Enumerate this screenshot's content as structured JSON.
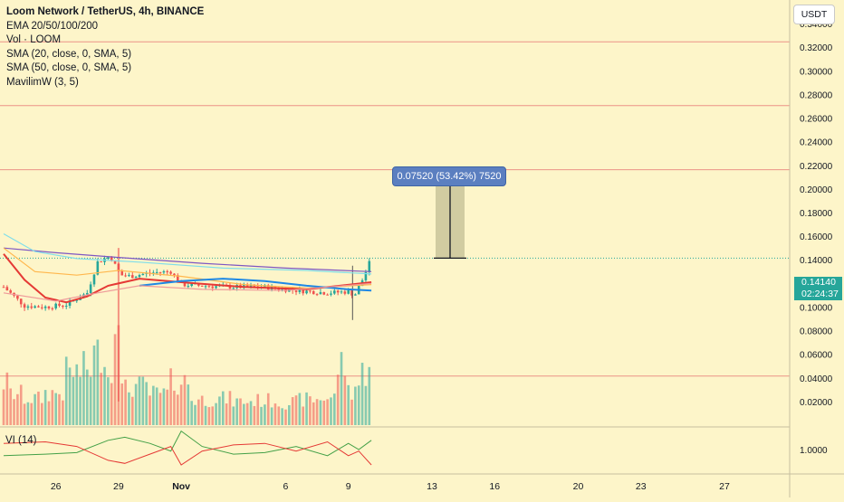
{
  "legend": {
    "title": "Loom Network / TetherUS, 4h, BINANCE",
    "lines": [
      "EMA 20/50/100/200",
      "Vol · LOOM",
      "SMA (20, close, 0, SMA, 5)",
      "SMA (50, close, 0, SMA, 5)",
      "MavilimW (3, 5)"
    ],
    "vi_label": "VI (14)"
  },
  "toolbar": {
    "currency": "USDT"
  },
  "price_tag": {
    "price": "0.14140",
    "countdown": "02:24:37"
  },
  "measure": {
    "label": "0.07520 (53.42%) 7520"
  },
  "colors": {
    "background": "#fdf5c9",
    "up": "#26a69a",
    "down": "#ef5350",
    "hline": "#e57373",
    "measure_fill": "#c9c49a",
    "label_bg": "#5b7fc0"
  },
  "chart_data": [
    {
      "type": "line",
      "title": "Loom Network / TetherUS, 4h, BINANCE",
      "y_ticks": [
        "0.34000",
        "0.32000",
        "0.30000",
        "0.28000",
        "0.26000",
        "0.24000",
        "0.22000",
        "0.20000",
        "0.18000",
        "0.16000",
        "0.14000",
        "0.12000",
        "0.10000",
        "0.08000",
        "0.06000",
        "0.04000",
        "0.02000"
      ],
      "ylim": [
        0.0,
        0.36
      ],
      "x_ticks": [
        "26",
        "29",
        "Nov",
        "6",
        "9",
        "13",
        "16",
        "20",
        "23",
        "27"
      ],
      "x_tick_days": [
        26,
        29,
        32,
        37,
        40,
        44,
        47,
        51,
        54,
        58
      ],
      "xlim": [
        23.5,
        60.6
      ],
      "horizontal_lines": [
        0.3246,
        0.2706,
        0.2163,
        0.0416
      ],
      "last_price": 0.1414,
      "measure": {
        "from": 0.1414,
        "to": 0.2166,
        "change": 0.0752,
        "percent": 53.42,
        "bars": 7520,
        "start_day": 42.9,
        "end_day": 43.5
      },
      "price_series": [
        {
          "day": 23.5,
          "value": 0.117
        },
        {
          "day": 24.5,
          "value": 0.101
        },
        {
          "day": 25.5,
          "value": 0.1
        },
        {
          "day": 26.5,
          "value": 0.102
        },
        {
          "day": 27.5,
          "value": 0.112
        },
        {
          "day": 28.0,
          "value": 0.138
        },
        {
          "day": 28.6,
          "value": 0.143
        },
        {
          "day": 29.1,
          "value": 0.127
        },
        {
          "day": 29.6,
          "value": 0.126
        },
        {
          "day": 30.5,
          "value": 0.129
        },
        {
          "day": 31.5,
          "value": 0.13
        },
        {
          "day": 32.0,
          "value": 0.119
        },
        {
          "day": 33.0,
          "value": 0.118
        },
        {
          "day": 34.5,
          "value": 0.117
        },
        {
          "day": 36.0,
          "value": 0.117
        },
        {
          "day": 37.5,
          "value": 0.114
        },
        {
          "day": 39.0,
          "value": 0.112
        },
        {
          "day": 40.0,
          "value": 0.113
        },
        {
          "day": 40.3,
          "value": 0.11
        },
        {
          "day": 40.7,
          "value": 0.124
        },
        {
          "day": 41.1,
          "value": 0.1414
        }
      ],
      "volume_series": [
        {
          "day": 23.6,
          "value": 0.045
        },
        {
          "day": 24.0,
          "value": 0.033
        },
        {
          "day": 25.0,
          "value": 0.028
        },
        {
          "day": 26.0,
          "value": 0.034
        },
        {
          "day": 27.0,
          "value": 0.056
        },
        {
          "day": 27.4,
          "value": 0.06
        },
        {
          "day": 28.0,
          "value": 0.075
        },
        {
          "day": 28.3,
          "value": 0.079
        },
        {
          "day": 28.6,
          "value": 0.051
        },
        {
          "day": 29.0,
          "value": 0.14
        },
        {
          "day": 29.3,
          "value": 0.038
        },
        {
          "day": 30.0,
          "value": 0.041
        },
        {
          "day": 31.0,
          "value": 0.033
        },
        {
          "day": 32.0,
          "value": 0.046
        },
        {
          "day": 33.0,
          "value": 0.027
        },
        {
          "day": 34.0,
          "value": 0.028
        },
        {
          "day": 35.0,
          "value": 0.025
        },
        {
          "day": 36.0,
          "value": 0.026
        },
        {
          "day": 37.0,
          "value": 0.024
        },
        {
          "day": 38.0,
          "value": 0.027
        },
        {
          "day": 39.0,
          "value": 0.029
        },
        {
          "day": 39.8,
          "value": 0.063
        },
        {
          "day": 40.0,
          "value": 0.037
        },
        {
          "day": 40.5,
          "value": 0.042
        },
        {
          "day": 40.8,
          "value": 0.056
        },
        {
          "day": 41.0,
          "value": 0.074
        }
      ]
    },
    {
      "type": "line",
      "title": "VI (14)",
      "y_ticks": [
        "1.0000"
      ],
      "series": [
        {
          "color": "#43a047",
          "points": [
            [
              23.5,
              0.96
            ],
            [
              25.5,
              0.97
            ],
            [
              27.0,
              0.98
            ],
            [
              28.5,
              1.06
            ],
            [
              29.3,
              1.08
            ],
            [
              30.5,
              1.04
            ],
            [
              31.5,
              0.99
            ],
            [
              32.0,
              1.12
            ],
            [
              33.0,
              1.02
            ],
            [
              34.5,
              0.97
            ],
            [
              36.0,
              0.98
            ],
            [
              37.5,
              1.02
            ],
            [
              39.0,
              0.96
            ],
            [
              40.0,
              1.04
            ],
            [
              40.5,
              1.0
            ],
            [
              41.1,
              1.06
            ]
          ]
        },
        {
          "color": "#e53935",
          "points": [
            [
              23.5,
              1.04
            ],
            [
              25.5,
              1.05
            ],
            [
              27.0,
              1.02
            ],
            [
              28.5,
              0.93
            ],
            [
              29.3,
              0.91
            ],
            [
              30.5,
              0.97
            ],
            [
              31.5,
              1.02
            ],
            [
              32.0,
              0.9
            ],
            [
              33.0,
              0.99
            ],
            [
              34.5,
              1.03
            ],
            [
              36.0,
              1.04
            ],
            [
              37.5,
              0.99
            ],
            [
              39.0,
              1.05
            ],
            [
              40.0,
              0.96
            ],
            [
              40.5,
              0.99
            ],
            [
              41.1,
              0.9
            ]
          ]
        }
      ]
    }
  ]
}
